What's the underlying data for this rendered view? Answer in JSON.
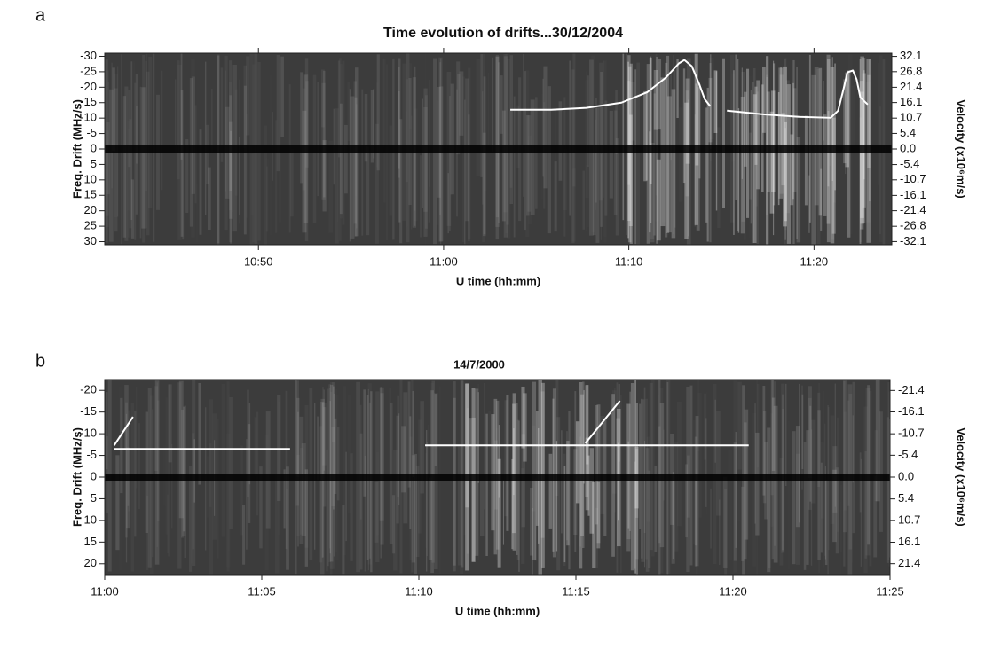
{
  "chart_data": [
    {
      "type": "line",
      "label": "a",
      "title": "Time evolution of drifts...30/12/2004",
      "x_label": "U time (hh:mm)",
      "y_label": "Freq. Drift (MHz/s)",
      "y2_label": "Velocity (x10⁶m/s)",
      "xlim": [
        641.7,
        684.2
      ],
      "xticks": [
        {
          "value": 650,
          "label": "10:50"
        },
        {
          "value": 660,
          "label": "11:00"
        },
        {
          "value": 670,
          "label": "11:10"
        },
        {
          "value": 680,
          "label": "11:20"
        }
      ],
      "ylim": [
        31,
        -31
      ],
      "yticks": [
        -30,
        -25,
        -20,
        -15,
        -10,
        -5,
        0,
        5,
        10,
        15,
        20,
        25,
        30
      ],
      "y2lim": [
        -33.2,
        33.2
      ],
      "y2ticks": [
        32.1,
        26.8,
        21.4,
        16.1,
        10.7,
        5.4,
        {
          "value": 0,
          "label": "0.0"
        },
        -5.4,
        -10.7,
        -16.1,
        -21.4,
        -26.8,
        -32.1
      ],
      "series": [
        {
          "color": "#ffffff",
          "x": [
            663.6,
            665.8,
            667.7,
            669.6,
            671.0,
            672.0,
            672.7,
            673.0,
            673.4,
            673.8,
            674.1,
            674.4
          ],
          "values": [
            -12.7,
            -12.7,
            -13.3,
            -15.0,
            -18.4,
            -23.1,
            -27.7,
            -28.8,
            -26.8,
            -21.0,
            -16.1,
            -13.8
          ]
        },
        {
          "color": "#ffffff",
          "x": [
            675.3,
            677.3,
            679.2,
            680.9,
            681.3,
            681.6,
            681.8,
            682.1,
            682.3,
            682.5,
            682.9
          ],
          "values": [
            -12.4,
            -11.2,
            -10.4,
            -10.1,
            -12.4,
            -19.6,
            -24.8,
            -25.4,
            -22.5,
            -16.7,
            -14.4
          ]
        }
      ]
    },
    {
      "type": "line",
      "label": "b",
      "title": "14/7/2000",
      "x_label": "U time (hh:mm)",
      "y_label": "Freq. Drift (MHz/s)",
      "y2_label": "Velocity (x10⁶m/s)",
      "xlim": [
        660,
        685
      ],
      "xticks": [
        {
          "value": 660,
          "label": "11:00"
        },
        {
          "value": 665,
          "label": "11:05"
        },
        {
          "value": 670,
          "label": "11:10"
        },
        {
          "value": 675,
          "label": "11:15"
        },
        {
          "value": 680,
          "label": "11:20"
        },
        {
          "value": 685,
          "label": "11:25"
        }
      ],
      "ylim": [
        22.5,
        -22.5
      ],
      "yticks": [
        -20,
        -15,
        -10,
        -5,
        0,
        5,
        10,
        15,
        20
      ],
      "y2lim": [
        24.1,
        -24.1
      ],
      "y2ticks": [
        -21.4,
        -16.1,
        -10.7,
        -5.4,
        {
          "value": 0,
          "label": "0.0"
        },
        5.4,
        10.7,
        16.1,
        21.4
      ],
      "series": [
        {
          "color": "#ffffff",
          "x": [
            660.3,
            665.9
          ],
          "values": [
            -6.5,
            -6.5
          ]
        },
        {
          "color": "#ffffff",
          "x": [
            660.3,
            660.9
          ],
          "values": [
            -7.3,
            -13.9
          ]
        },
        {
          "color": "#ffffff",
          "x": [
            670.2,
            680.5
          ],
          "values": [
            -7.3,
            -7.3
          ]
        },
        {
          "color": "#ffffff",
          "x": [
            675.3,
            676.4
          ],
          "values": [
            -7.8,
            -17.6
          ]
        }
      ]
    }
  ]
}
